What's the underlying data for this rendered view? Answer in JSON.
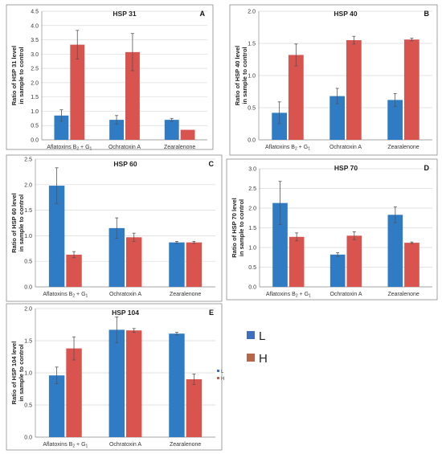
{
  "legend": {
    "entries": [
      {
        "label": "L",
        "color": "#3f6fbf"
      },
      {
        "label": "H",
        "color": "#b8664a"
      }
    ]
  },
  "colors": {
    "L": "#2f7bc4",
    "H": "#d9534f",
    "grid": "#d9d9d9",
    "axis": "#888888",
    "error": "#555555"
  },
  "chart_data": [
    {
      "type": "bar",
      "panel": "A",
      "title": "HSP 31",
      "ylabel": [
        "Ratio of HSP 31 level",
        "in sample to control"
      ],
      "ylim": [
        0,
        4.5
      ],
      "ystep": 0.5,
      "yformat": 1,
      "categories": [
        "Aflatoxins B2 + G1",
        "Ochratoxin A",
        "Zearalenone"
      ],
      "series": [
        {
          "name": "L",
          "values": [
            0.85,
            0.7,
            0.7
          ],
          "errors": [
            0.2,
            0.15,
            0.05
          ]
        },
        {
          "name": "H",
          "values": [
            3.33,
            3.07,
            0.35
          ],
          "errors": [
            0.5,
            0.65,
            0
          ]
        }
      ],
      "legend": false
    },
    {
      "type": "bar",
      "panel": "B",
      "title": "HSP 40",
      "ylabel": [
        "Ratio of HSP 40 level",
        "in sample to control"
      ],
      "ylim": [
        0,
        2.0
      ],
      "ystep": 0.5,
      "yformat": 1,
      "categories": [
        "Aflatoxins B2 + G1",
        "Ochratoxin A",
        "Zearalenone"
      ],
      "series": [
        {
          "name": "L",
          "values": [
            0.42,
            0.68,
            0.62
          ],
          "errors": [
            0.17,
            0.12,
            0.1
          ]
        },
        {
          "name": "H",
          "values": [
            1.32,
            1.55,
            1.56
          ],
          "errors": [
            0.17,
            0.06,
            0.02
          ]
        }
      ],
      "legend": false
    },
    {
      "type": "bar",
      "panel": "C",
      "title": "HSP 60",
      "ylabel": [
        "Ratio of HSP 60 level",
        "in sample to control"
      ],
      "ylim": [
        0,
        2.5
      ],
      "ystep": 0.5,
      "yformat": 1,
      "categories": [
        "Aflatoxins B2 + G1",
        "Ochratoxin A",
        "Zearalenone"
      ],
      "series": [
        {
          "name": "L",
          "values": [
            1.98,
            1.15,
            0.87
          ],
          "errors": [
            0.35,
            0.2,
            0.02
          ]
        },
        {
          "name": "H",
          "values": [
            0.63,
            0.97,
            0.87
          ],
          "errors": [
            0.06,
            0.08,
            0.02
          ]
        }
      ],
      "legend": false
    },
    {
      "type": "bar",
      "panel": "D",
      "title": "HSP 70",
      "ylabel": [
        "Ratio of HSP 70 level",
        "in sample to control"
      ],
      "ylim": [
        0,
        3.0
      ],
      "ystep": 0.5,
      "yformat": 1,
      "categories": [
        "Aflatoxins B2 + G1",
        "Ochratoxin A",
        "Zearalenone"
      ],
      "series": [
        {
          "name": "L",
          "values": [
            2.13,
            0.82,
            1.83
          ],
          "errors": [
            0.55,
            0.05,
            0.2
          ]
        },
        {
          "name": "H",
          "values": [
            1.27,
            1.3,
            1.12
          ],
          "errors": [
            0.1,
            0.1,
            0.02
          ]
        }
      ],
      "legend": false
    },
    {
      "type": "bar",
      "panel": "E",
      "title": "HSP 104",
      "ylabel": [
        "Ratio of HSP 104 level",
        "in sample to control"
      ],
      "ylim": [
        0,
        2.0
      ],
      "ystep": 0.5,
      "yformat": 1,
      "categories": [
        "Aflatoxins B2 + G1",
        "Ochratoxin A",
        "Zearalenone"
      ],
      "series": [
        {
          "name": "L",
          "values": [
            0.96,
            1.67,
            1.61
          ],
          "errors": [
            0.13,
            0.2,
            0.02
          ]
        },
        {
          "name": "H",
          "values": [
            1.38,
            1.66,
            0.9
          ],
          "errors": [
            0.18,
            0.03,
            0.08
          ]
        }
      ],
      "legend": true
    }
  ]
}
